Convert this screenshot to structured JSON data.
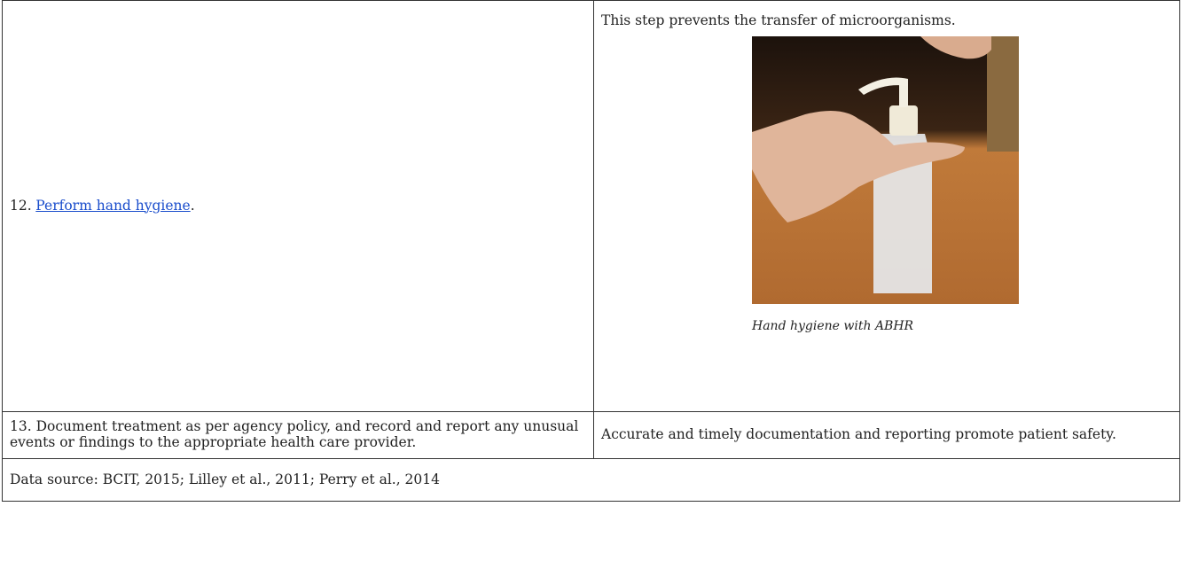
{
  "table": {
    "rows": [
      {
        "step": {
          "prefix": "12.",
          "link": "Perform hand hygiene",
          "suffix": "."
        },
        "rationale": "This step prevents the transfer of microorganisms.",
        "figure_caption": "Hand hygiene with ABHR"
      },
      {
        "step": "13. Document treatment as per agency policy, and record and report any unusual events or findings to the appropriate health care provider.",
        "rationale": "Accurate and timely documentation and reporting promote patient safety."
      }
    ],
    "footer": "Data source: BCIT, 2015; Lilley et al., 2011; Perry et al., 2014"
  }
}
